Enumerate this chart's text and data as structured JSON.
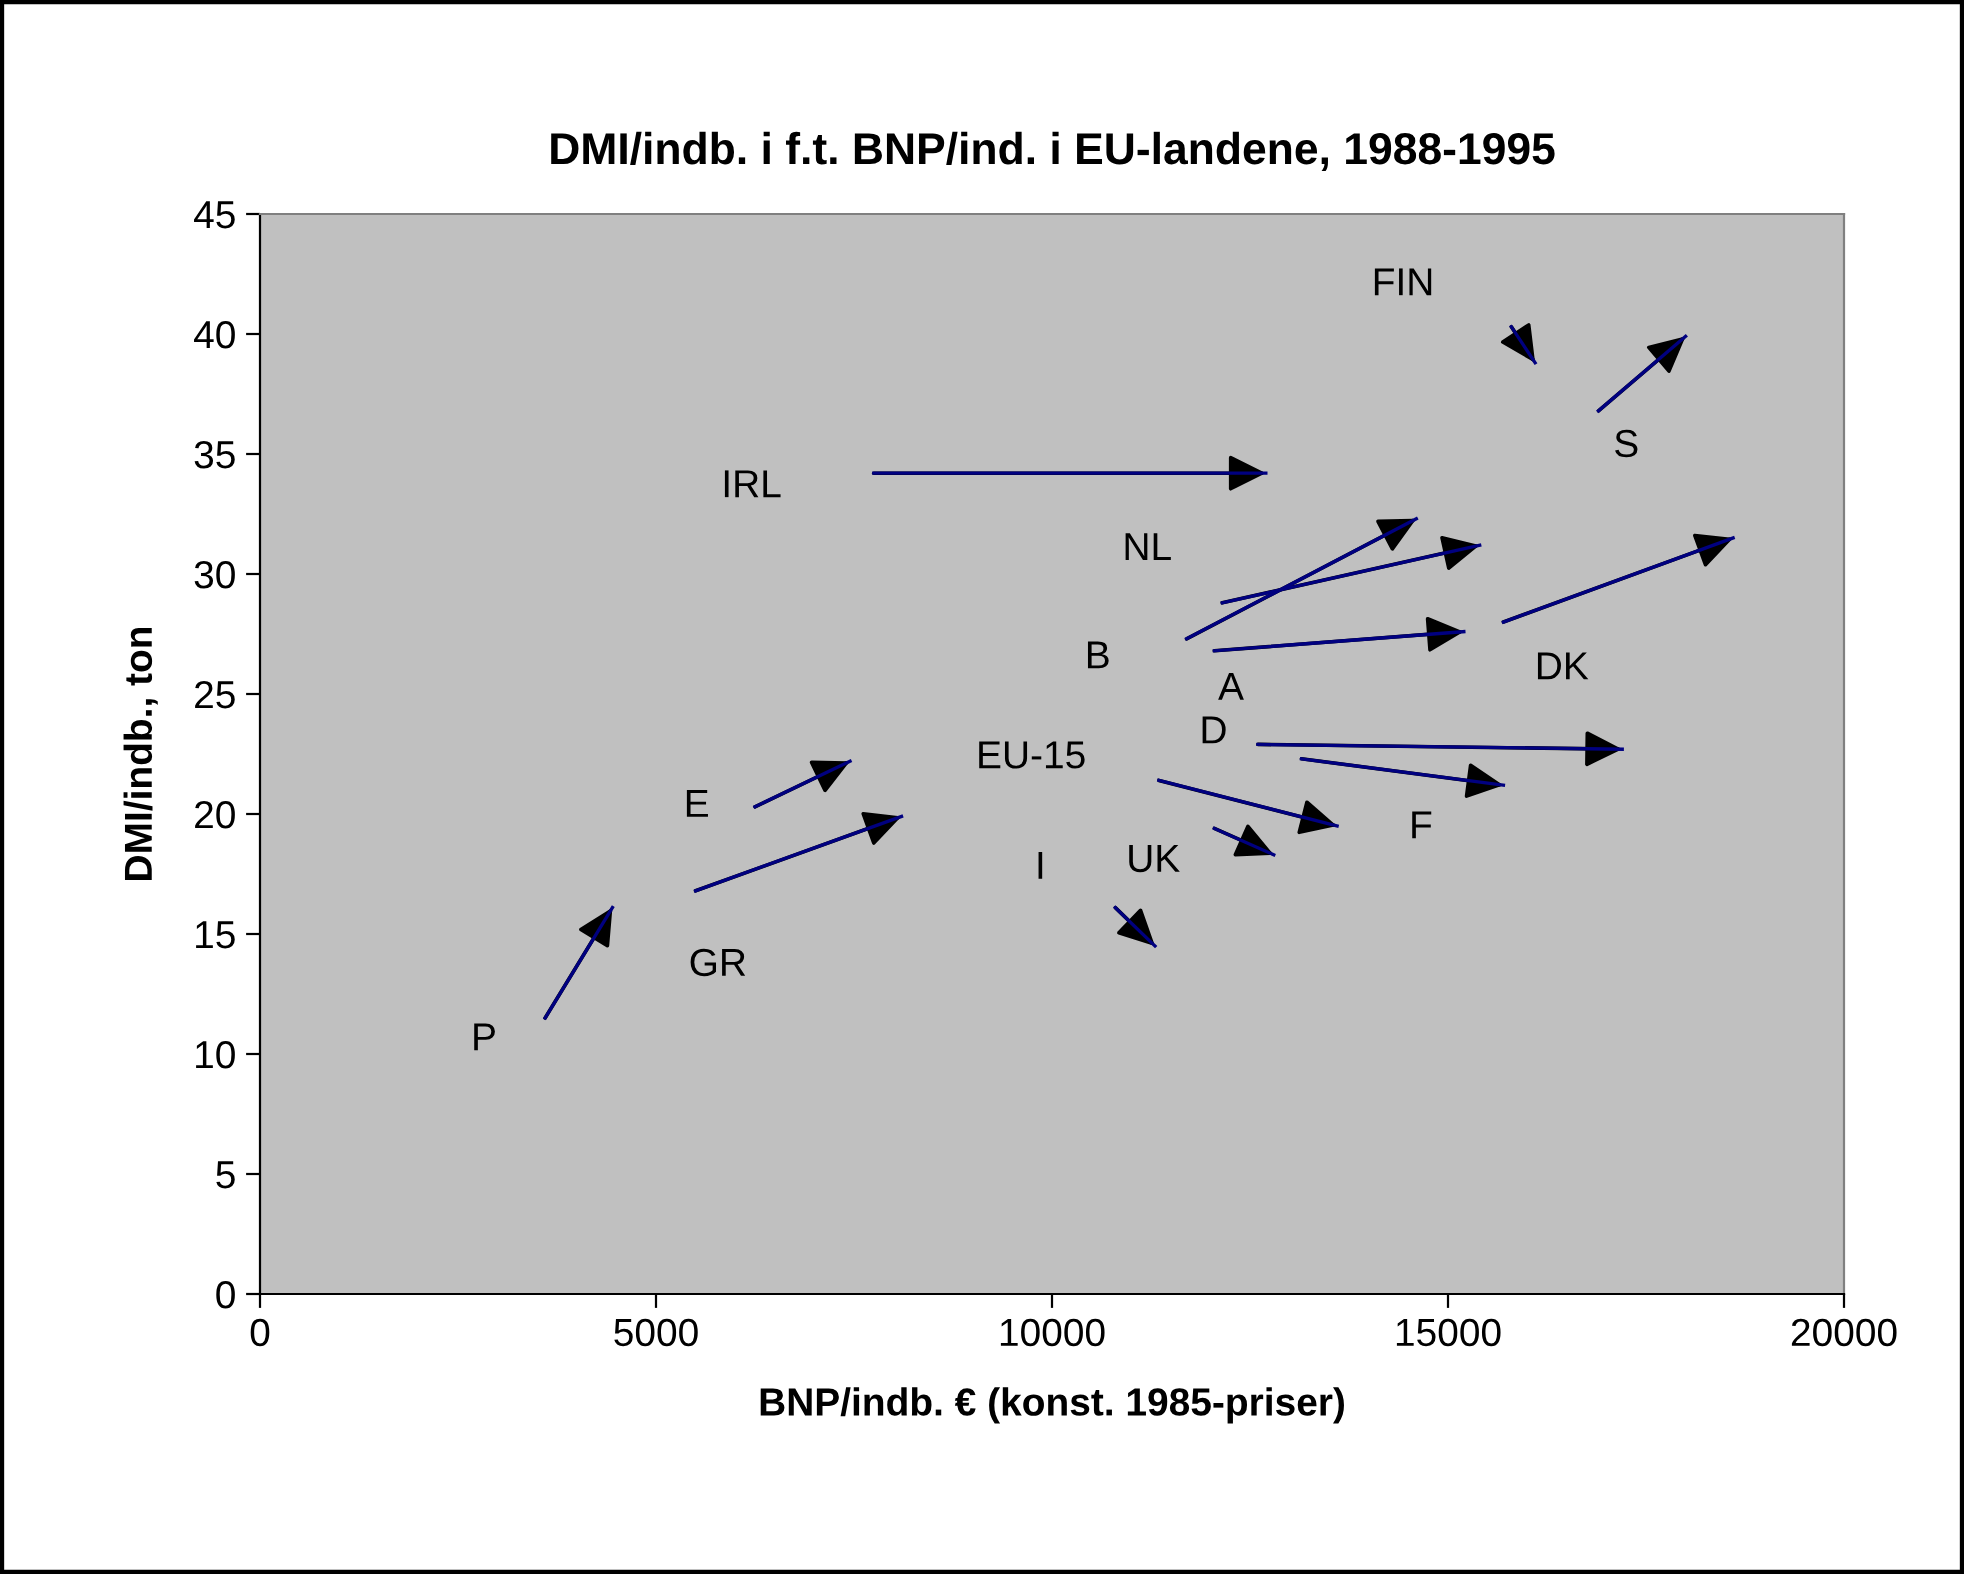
{
  "chart_data": {
    "type": "line",
    "title": "DMI/indb. i f.t. BNP/ind. i EU-landene, 1988-1995",
    "xlabel": "BNP/indb. € (konst. 1985-priser)",
    "ylabel": "DMI/indb., ton",
    "xlim": [
      0,
      20000
    ],
    "xticks": [
      0,
      5000,
      10000,
      15000,
      20000
    ],
    "ylim": [
      0,
      45
    ],
    "yticks": [
      0,
      5,
      10,
      15,
      20,
      25,
      30,
      35,
      40,
      45
    ],
    "grid": false,
    "marker": "none",
    "line_style": "solid",
    "series": [
      {
        "name": "IRL",
        "color": "#000080",
        "x": [
          7750,
          12700
        ],
        "values": [
          34.2,
          34.2
        ]
      },
      {
        "name": "FIN",
        "color": "#000080",
        "x": [
          15800,
          16100
        ],
        "values": [
          40.3,
          38.8
        ]
      },
      {
        "name": "S",
        "color": "#000080",
        "x": [
          16900,
          18000
        ],
        "values": [
          36.8,
          39.9
        ]
      },
      {
        "name": "NL",
        "color": "#000080",
        "x": [
          12150,
          15400
        ],
        "values": [
          28.8,
          31.2
        ]
      },
      {
        "name": "B",
        "color": "#000080",
        "x": [
          11700,
          14600
        ],
        "values": [
          27.3,
          32.3
        ]
      },
      {
        "name": "A",
        "color": "#000080",
        "x": [
          12050,
          15200
        ],
        "values": [
          26.8,
          27.6
        ]
      },
      {
        "name": "DK",
        "color": "#000080",
        "x": [
          15700,
          18600
        ],
        "values": [
          28.0,
          31.5
        ]
      },
      {
        "name": "D",
        "color": "#000080",
        "x": [
          12600,
          17200
        ],
        "values": [
          22.9,
          22.7
        ]
      },
      {
        "name": "F",
        "color": "#000080",
        "x": [
          13150,
          15700
        ],
        "values": [
          22.3,
          21.2
        ]
      },
      {
        "name": "EU-15",
        "color": "#000080",
        "x": [
          11350,
          13600
        ],
        "values": [
          21.4,
          19.5
        ]
      },
      {
        "name": "UK",
        "color": "#000080",
        "x": [
          12050,
          12800
        ],
        "values": [
          19.4,
          18.3
        ]
      },
      {
        "name": "I",
        "color": "#000080",
        "x": [
          10800,
          11300
        ],
        "values": [
          16.1,
          14.5
        ]
      },
      {
        "name": "E",
        "color": "#000080",
        "x": [
          6250,
          7450
        ],
        "values": [
          20.3,
          22.2
        ]
      },
      {
        "name": "GR",
        "color": "#000080",
        "x": [
          5500,
          8100
        ],
        "values": [
          16.8,
          19.9
        ]
      },
      {
        "name": "P",
        "color": "#000080",
        "x": [
          3600,
          4450
        ],
        "values": [
          11.5,
          16.1
        ]
      }
    ]
  }
}
